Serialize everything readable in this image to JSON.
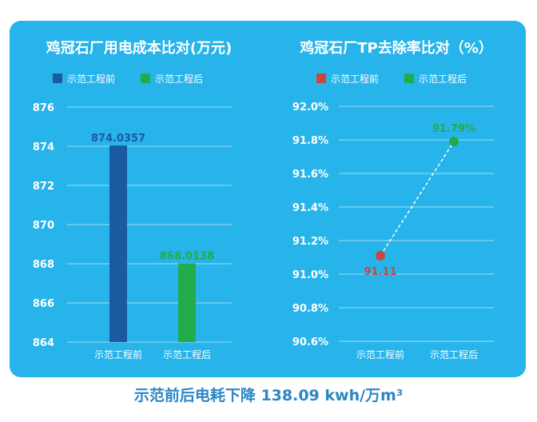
{
  "colors": {
    "panel_bg": "#26b4ea",
    "bar_before": "#1a5aa0",
    "bar_after": "#22ad4a",
    "point_before": "#c9473f",
    "point_after": "#22ad4a",
    "label_before_left": "#1a5aa0",
    "label_before_right": "#c9473f",
    "label_after": "#22ad4a",
    "grid": "#a7dcf4",
    "text": "#ffffff",
    "footer": "#2a86c4"
  },
  "chart_data": [
    {
      "type": "bar",
      "title": "鸡冠石厂用电成本比对(万元)",
      "categories": [
        "示范工程前",
        "示范工程后"
      ],
      "values": [
        874.0357,
        868.0138
      ],
      "value_labels": [
        "874.0357",
        "868.0138"
      ],
      "legend": [
        "示范工程前",
        "示范工程后"
      ],
      "yticks": [
        "876",
        "874",
        "872",
        "870",
        "868",
        "866",
        "864"
      ],
      "ylim": [
        864,
        876
      ],
      "grid": true,
      "legend_position": "top"
    },
    {
      "type": "line",
      "title": "鸡冠石厂TP去除率比对（%）",
      "categories": [
        "示范工程前",
        "示范工程后"
      ],
      "values": [
        91.11,
        91.79
      ],
      "value_labels": [
        "91.11",
        "91.79%"
      ],
      "legend": [
        "示范工程前",
        "示范工程后"
      ],
      "yticks": [
        "92.0%",
        "91.8%",
        "91.6%",
        "91.4%",
        "91.2%",
        "91.0%",
        "90.8%",
        "90.6%"
      ],
      "ylim": [
        90.6,
        92.0
      ],
      "grid": true,
      "line_style": "dashed",
      "legend_position": "top"
    }
  ],
  "footer": "示范前后电耗下降 138.09 kwh/万m³"
}
